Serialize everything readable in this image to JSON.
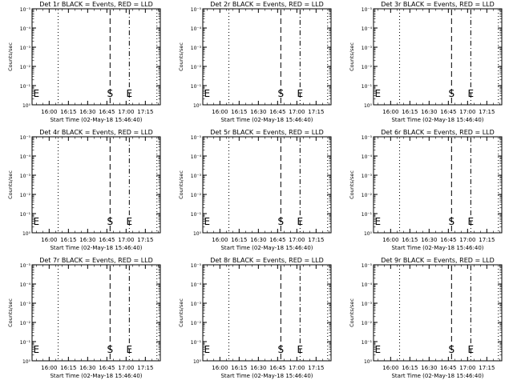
{
  "figure": {
    "background": "#ffffff",
    "ink": "#000000"
  },
  "chart_data": [
    {
      "type": "line",
      "title": "Det 1r BLACK = Events, RED = LLD",
      "xlabel": "Start Time (02-May-18 15:46:40)",
      "ylabel": "Counts/sec",
      "x_ticks": [
        "16:00",
        "16:15",
        "16:30",
        "16:45",
        "17:00",
        "17:15"
      ],
      "y_ticks": [
        "10⁰",
        "10⁻¹",
        "10⁻²",
        "10⁻³",
        "10⁻⁴",
        "10⁻⁵"
      ],
      "scale": "log",
      "xlim": [
        "15:46:40",
        "17:26:40"
      ],
      "series": [],
      "markers": [
        {
          "label": "E",
          "time": "15:47:00",
          "style": "none"
        },
        {
          "label": "",
          "time": "16:07:00",
          "style": "dotted"
        },
        {
          "label": "S",
          "time": "16:47:30",
          "style": "dashed"
        },
        {
          "label": "E",
          "time": "17:02:30",
          "style": "dashdot"
        },
        {
          "label": "",
          "time": "17:24:00",
          "style": "dotted"
        }
      ]
    },
    {
      "type": "line",
      "title": "Det 2r BLACK = Events, RED = LLD",
      "xlabel": "Start Time (02-May-18 15:46:40)",
      "ylabel": "Counts/sec",
      "x_ticks": [
        "16:00",
        "16:15",
        "16:30",
        "16:45",
        "17:00",
        "17:15"
      ],
      "y_ticks": [
        "10⁰",
        "10⁻¹",
        "10⁻²",
        "10⁻³",
        "10⁻⁴",
        "10⁻⁵"
      ],
      "scale": "log",
      "xlim": [
        "15:46:40",
        "17:26:40"
      ],
      "series": [],
      "markers": [
        {
          "label": "E",
          "time": "15:47:00",
          "style": "none"
        },
        {
          "label": "",
          "time": "16:07:00",
          "style": "dotted"
        },
        {
          "label": "S",
          "time": "16:47:30",
          "style": "dashed"
        },
        {
          "label": "E",
          "time": "17:02:30",
          "style": "dashdot"
        },
        {
          "label": "",
          "time": "17:24:00",
          "style": "dotted"
        }
      ]
    },
    {
      "type": "line",
      "title": "Det 3r BLACK = Events, RED = LLD",
      "xlabel": "Start Time (02-May-18 15:46:40)",
      "ylabel": "Counts/sec",
      "x_ticks": [
        "16:00",
        "16:15",
        "16:30",
        "16:45",
        "17:00",
        "17:15"
      ],
      "y_ticks": [
        "10⁰",
        "10⁻¹",
        "10⁻²",
        "10⁻³",
        "10⁻⁴",
        "10⁻⁵"
      ],
      "scale": "log",
      "xlim": [
        "15:46:40",
        "17:26:40"
      ],
      "series": [],
      "markers": [
        {
          "label": "E",
          "time": "15:47:00",
          "style": "none"
        },
        {
          "label": "",
          "time": "16:07:00",
          "style": "dotted"
        },
        {
          "label": "S",
          "time": "16:47:30",
          "style": "dashed"
        },
        {
          "label": "E",
          "time": "17:02:30",
          "style": "dashdot"
        },
        {
          "label": "",
          "time": "17:24:00",
          "style": "dotted"
        }
      ]
    },
    {
      "type": "line",
      "title": "Det 4r BLACK = Events, RED = LLD",
      "xlabel": "Start Time (02-May-18 15:46:40)",
      "ylabel": "Counts/sec",
      "x_ticks": [
        "16:00",
        "16:15",
        "16:30",
        "16:45",
        "17:00",
        "17:15"
      ],
      "y_ticks": [
        "10⁰",
        "10⁻¹",
        "10⁻²",
        "10⁻³",
        "10⁻⁴",
        "10⁻⁵"
      ],
      "scale": "log",
      "xlim": [
        "15:46:40",
        "17:26:40"
      ],
      "series": [],
      "markers": [
        {
          "label": "E",
          "time": "15:47:00",
          "style": "none"
        },
        {
          "label": "",
          "time": "16:07:00",
          "style": "dotted"
        },
        {
          "label": "S",
          "time": "16:47:30",
          "style": "dashed"
        },
        {
          "label": "E",
          "time": "17:02:30",
          "style": "dashdot"
        },
        {
          "label": "",
          "time": "17:24:00",
          "style": "dotted"
        }
      ]
    },
    {
      "type": "line",
      "title": "Det 5r BLACK = Events, RED = LLD",
      "xlabel": "Start Time (02-May-18 15:46:40)",
      "ylabel": "Counts/sec",
      "x_ticks": [
        "16:00",
        "16:15",
        "16:30",
        "16:45",
        "17:00",
        "17:15"
      ],
      "y_ticks": [
        "10⁰",
        "10⁻¹",
        "10⁻²",
        "10⁻³",
        "10⁻⁴",
        "10⁻⁵"
      ],
      "scale": "log",
      "xlim": [
        "15:46:40",
        "17:26:40"
      ],
      "series": [],
      "markers": [
        {
          "label": "E",
          "time": "15:47:00",
          "style": "none"
        },
        {
          "label": "",
          "time": "16:07:00",
          "style": "dotted"
        },
        {
          "label": "S",
          "time": "16:47:30",
          "style": "dashed"
        },
        {
          "label": "E",
          "time": "17:02:30",
          "style": "dashdot"
        },
        {
          "label": "",
          "time": "17:24:00",
          "style": "dotted"
        }
      ]
    },
    {
      "type": "line",
      "title": "Det 6r BLACK = Events, RED = LLD",
      "xlabel": "Start Time (02-May-18 15:46:40)",
      "ylabel": "Counts/sec",
      "x_ticks": [
        "16:00",
        "16:15",
        "16:30",
        "16:45",
        "17:00",
        "17:15"
      ],
      "y_ticks": [
        "10⁰",
        "10⁻¹",
        "10⁻²",
        "10⁻³",
        "10⁻⁴",
        "10⁻⁵"
      ],
      "scale": "log",
      "xlim": [
        "15:46:40",
        "17:26:40"
      ],
      "series": [],
      "markers": [
        {
          "label": "E",
          "time": "15:47:00",
          "style": "none"
        },
        {
          "label": "",
          "time": "16:07:00",
          "style": "dotted"
        },
        {
          "label": "S",
          "time": "16:47:30",
          "style": "dashed"
        },
        {
          "label": "E",
          "time": "17:02:30",
          "style": "dashdot"
        },
        {
          "label": "",
          "time": "17:24:00",
          "style": "dotted"
        }
      ]
    },
    {
      "type": "line",
      "title": "Det 7r BLACK = Events, RED = LLD",
      "xlabel": "Start Time (02-May-18 15:46:40)",
      "ylabel": "Counts/sec",
      "x_ticks": [
        "16:00",
        "16:15",
        "16:30",
        "16:45",
        "17:00",
        "17:15"
      ],
      "y_ticks": [
        "10⁰",
        "10⁻¹",
        "10⁻²",
        "10⁻³",
        "10⁻⁴",
        "10⁻⁵"
      ],
      "scale": "log",
      "xlim": [
        "15:46:40",
        "17:26:40"
      ],
      "series": [],
      "markers": [
        {
          "label": "E",
          "time": "15:47:00",
          "style": "none"
        },
        {
          "label": "",
          "time": "16:07:00",
          "style": "dotted"
        },
        {
          "label": "S",
          "time": "16:47:30",
          "style": "dashed"
        },
        {
          "label": "E",
          "time": "17:02:30",
          "style": "dashdot"
        },
        {
          "label": "",
          "time": "17:24:00",
          "style": "dotted"
        }
      ]
    },
    {
      "type": "line",
      "title": "Det 8r BLACK = Events, RED = LLD",
      "xlabel": "Start Time (02-May-18 15:46:40)",
      "ylabel": "Counts/sec",
      "x_ticks": [
        "16:00",
        "16:15",
        "16:30",
        "16:45",
        "17:00",
        "17:15"
      ],
      "y_ticks": [
        "10⁰",
        "10⁻¹",
        "10⁻²",
        "10⁻³",
        "10⁻⁴",
        "10⁻⁵"
      ],
      "scale": "log",
      "xlim": [
        "15:46:40",
        "17:26:40"
      ],
      "series": [],
      "markers": [
        {
          "label": "E",
          "time": "15:47:00",
          "style": "none"
        },
        {
          "label": "",
          "time": "16:07:00",
          "style": "dotted"
        },
        {
          "label": "S",
          "time": "16:47:30",
          "style": "dashed"
        },
        {
          "label": "E",
          "time": "17:02:30",
          "style": "dashdot"
        },
        {
          "label": "",
          "time": "17:24:00",
          "style": "dotted"
        }
      ]
    },
    {
      "type": "line",
      "title": "Det 9r BLACK = Events, RED = LLD",
      "xlabel": "Start Time (02-May-18 15:46:40)",
      "ylabel": "Counts/sec",
      "x_ticks": [
        "16:00",
        "16:15",
        "16:30",
        "16:45",
        "17:00",
        "17:15"
      ],
      "y_ticks": [
        "10⁰",
        "10⁻¹",
        "10⁻²",
        "10⁻³",
        "10⁻⁴",
        "10⁻⁵"
      ],
      "scale": "log",
      "xlim": [
        "15:46:40",
        "17:26:40"
      ],
      "series": [],
      "markers": [
        {
          "label": "E",
          "time": "15:47:00",
          "style": "none"
        },
        {
          "label": "",
          "time": "16:07:00",
          "style": "dotted"
        },
        {
          "label": "S",
          "time": "16:47:30",
          "style": "dashed"
        },
        {
          "label": "E",
          "time": "17:02:30",
          "style": "dashdot"
        },
        {
          "label": "",
          "time": "17:24:00",
          "style": "dotted"
        }
      ]
    }
  ]
}
